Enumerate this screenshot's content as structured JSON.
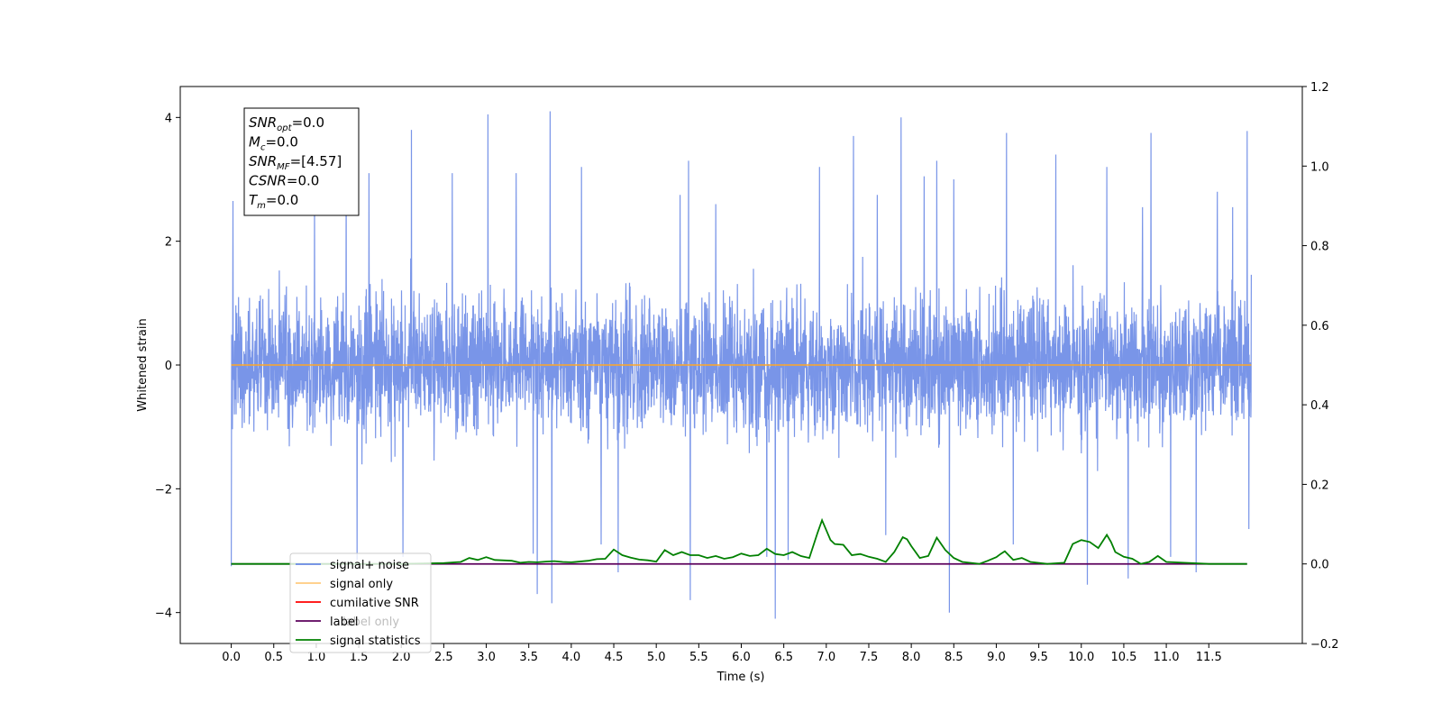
{
  "chart_data": {
    "type": "line",
    "xlabel": "Time (s)",
    "ylabel": "Whitened strain",
    "xlim": [
      -0.6,
      12.6
    ],
    "ylim": [
      -4.5,
      4.5
    ],
    "y2lim": [
      -0.2,
      1.2
    ],
    "x_ticks": [
      0.0,
      0.5,
      1.0,
      1.5,
      2.0,
      2.5,
      3.0,
      3.5,
      4.0,
      4.5,
      5.0,
      5.5,
      6.0,
      6.5,
      7.0,
      7.5,
      8.0,
      8.5,
      9.0,
      9.5,
      10.0,
      10.5,
      11.0,
      11.5
    ],
    "x_tick_labels": [
      "0.0",
      "0.5",
      "1.0",
      "1.5",
      "2.0",
      "2.5",
      "3.0",
      "3.5",
      "4.0",
      "4.5",
      "5.0",
      "5.5",
      "6.0",
      "6.5",
      "7.0",
      "7.5",
      "8.0",
      "8.5",
      "9.0",
      "9.5",
      "10.0",
      "10.5",
      "11.0",
      "11.5"
    ],
    "y_ticks": [
      -4,
      -2,
      0,
      2,
      4
    ],
    "y_tick_labels": [
      "−4",
      "−2",
      "0",
      "2",
      "4"
    ],
    "y2_ticks": [
      -0.2,
      0.0,
      0.2,
      0.4,
      0.6,
      0.8,
      1.0,
      1.2
    ],
    "y2_tick_labels": [
      "−0.2",
      "0.0",
      "0.2",
      "0.4",
      "0.6",
      "0.8",
      "1.0",
      "1.2"
    ],
    "grid": false,
    "legend_position": "lower-left",
    "noise": {
      "x_range": [
        0.0,
        12.0
      ],
      "typical_range": [
        -2.0,
        2.0
      ],
      "spikes": [
        {
          "x": 0.02,
          "y": 2.65
        },
        {
          "x": 0.0,
          "y": -3.25
        },
        {
          "x": 0.98,
          "y": 2.85
        },
        {
          "x": 1.35,
          "y": 3.1
        },
        {
          "x": 1.48,
          "y": -3.15
        },
        {
          "x": 1.62,
          "y": 3.1
        },
        {
          "x": 2.12,
          "y": 3.8
        },
        {
          "x": 2.02,
          "y": -3.1
        },
        {
          "x": 2.6,
          "y": 3.1
        },
        {
          "x": 3.02,
          "y": 4.05
        },
        {
          "x": 3.35,
          "y": 3.1
        },
        {
          "x": 3.55,
          "y": -3.05
        },
        {
          "x": 3.6,
          "y": -3.7
        },
        {
          "x": 3.75,
          "y": 4.1
        },
        {
          "x": 3.77,
          "y": -3.85
        },
        {
          "x": 4.12,
          "y": 3.2
        },
        {
          "x": 4.35,
          "y": -2.9
        },
        {
          "x": 4.55,
          "y": -3.35
        },
        {
          "x": 5.28,
          "y": 2.75
        },
        {
          "x": 5.38,
          "y": 3.3
        },
        {
          "x": 5.4,
          "y": -3.8
        },
        {
          "x": 5.7,
          "y": 2.6
        },
        {
          "x": 6.3,
          "y": -3.1
        },
        {
          "x": 6.4,
          "y": -4.1
        },
        {
          "x": 6.55,
          "y": -3.15
        },
        {
          "x": 6.92,
          "y": 3.2
        },
        {
          "x": 7.32,
          "y": 3.7
        },
        {
          "x": 7.6,
          "y": 2.75
        },
        {
          "x": 7.7,
          "y": -2.75
        },
        {
          "x": 7.88,
          "y": 4.0
        },
        {
          "x": 8.15,
          "y": 3.05
        },
        {
          "x": 8.3,
          "y": 3.3
        },
        {
          "x": 8.45,
          "y": -4.0
        },
        {
          "x": 8.5,
          "y": 3.0
        },
        {
          "x": 9.12,
          "y": 3.75
        },
        {
          "x": 9.2,
          "y": -2.9
        },
        {
          "x": 9.7,
          "y": 3.4
        },
        {
          "x": 10.07,
          "y": -3.55
        },
        {
          "x": 10.3,
          "y": 3.2
        },
        {
          "x": 10.55,
          "y": -3.45
        },
        {
          "x": 10.72,
          "y": 2.55
        },
        {
          "x": 10.82,
          "y": 3.75
        },
        {
          "x": 11.05,
          "y": -3.1
        },
        {
          "x": 11.35,
          "y": -3.35
        },
        {
          "x": 11.6,
          "y": 2.8
        },
        {
          "x": 11.78,
          "y": 2.55
        },
        {
          "x": 11.95,
          "y": 3.78
        },
        {
          "x": 11.97,
          "y": -2.65
        }
      ]
    },
    "series": [
      {
        "name": "signal+ noise",
        "color": "#6a8ae6"
      },
      {
        "name": "signal only",
        "color": "#ffa726",
        "x": [
          0.0,
          12.0
        ],
        "y": [
          0.0,
          0.0
        ]
      },
      {
        "name": "cumilative SNR",
        "color": "#ff0000"
      },
      {
        "name": "label",
        "color": "#5c005c",
        "axis": "right",
        "x": [
          0.0,
          11.95
        ],
        "y": [
          0.0,
          0.0
        ]
      },
      {
        "name": "signal statistics",
        "color": "#008000",
        "axis": "right",
        "x": [
          0.0,
          1.0,
          2.0,
          2.5,
          2.7,
          2.8,
          2.9,
          3.0,
          3.1,
          3.3,
          3.4,
          3.5,
          3.6,
          3.7,
          3.8,
          3.9,
          4.0,
          4.2,
          4.3,
          4.4,
          4.5,
          4.6,
          4.7,
          4.8,
          4.9,
          5.0,
          5.1,
          5.2,
          5.3,
          5.4,
          5.5,
          5.6,
          5.7,
          5.8,
          5.9,
          6.0,
          6.1,
          6.2,
          6.3,
          6.4,
          6.5,
          6.6,
          6.7,
          6.8,
          6.9,
          6.95,
          7.0,
          7.05,
          7.1,
          7.2,
          7.3,
          7.4,
          7.5,
          7.6,
          7.7,
          7.8,
          7.9,
          7.95,
          8.0,
          8.1,
          8.2,
          8.3,
          8.4,
          8.5,
          8.6,
          8.8,
          8.9,
          9.0,
          9.05,
          9.1,
          9.2,
          9.3,
          9.4,
          9.6,
          9.8,
          9.9,
          10.0,
          10.1,
          10.2,
          10.3,
          10.35,
          10.4,
          10.5,
          10.6,
          10.7,
          10.8,
          10.9,
          11.0,
          11.5,
          11.95
        ],
        "y": [
          0.0,
          0.0,
          0.0,
          0.002,
          0.005,
          0.015,
          0.01,
          0.017,
          0.01,
          0.008,
          0.003,
          0.005,
          0.004,
          0.006,
          0.007,
          0.005,
          0.004,
          0.008,
          0.012,
          0.013,
          0.036,
          0.022,
          0.016,
          0.011,
          0.009,
          0.006,
          0.035,
          0.022,
          0.03,
          0.022,
          0.022,
          0.015,
          0.02,
          0.013,
          0.017,
          0.026,
          0.02,
          0.022,
          0.038,
          0.025,
          0.022,
          0.03,
          0.02,
          0.015,
          0.08,
          0.11,
          0.085,
          0.06,
          0.05,
          0.048,
          0.022,
          0.025,
          0.018,
          0.013,
          0.005,
          0.03,
          0.067,
          0.062,
          0.045,
          0.015,
          0.02,
          0.066,
          0.035,
          0.015,
          0.005,
          0.0,
          0.008,
          0.017,
          0.025,
          0.032,
          0.01,
          0.015,
          0.005,
          0.0,
          0.003,
          0.05,
          0.06,
          0.055,
          0.04,
          0.073,
          0.055,
          0.03,
          0.018,
          0.013,
          0.0,
          0.005,
          0.02,
          0.005,
          0.0,
          0.0
        ]
      }
    ]
  },
  "info_box": {
    "lines": [
      {
        "main": "SNR",
        "sub": "opt",
        "value": "=0.0"
      },
      {
        "main": "M",
        "sub": "c",
        "value": "=0.0"
      },
      {
        "main": "SNR",
        "sub": "MF",
        "value": "=[4.57]"
      },
      {
        "main": "CSNR",
        "sub": "",
        "value": "=0.0"
      },
      {
        "main": "T",
        "sub": "m",
        "value": "=0.0"
      }
    ]
  },
  "legend": {
    "overlap_text": "label only"
  }
}
